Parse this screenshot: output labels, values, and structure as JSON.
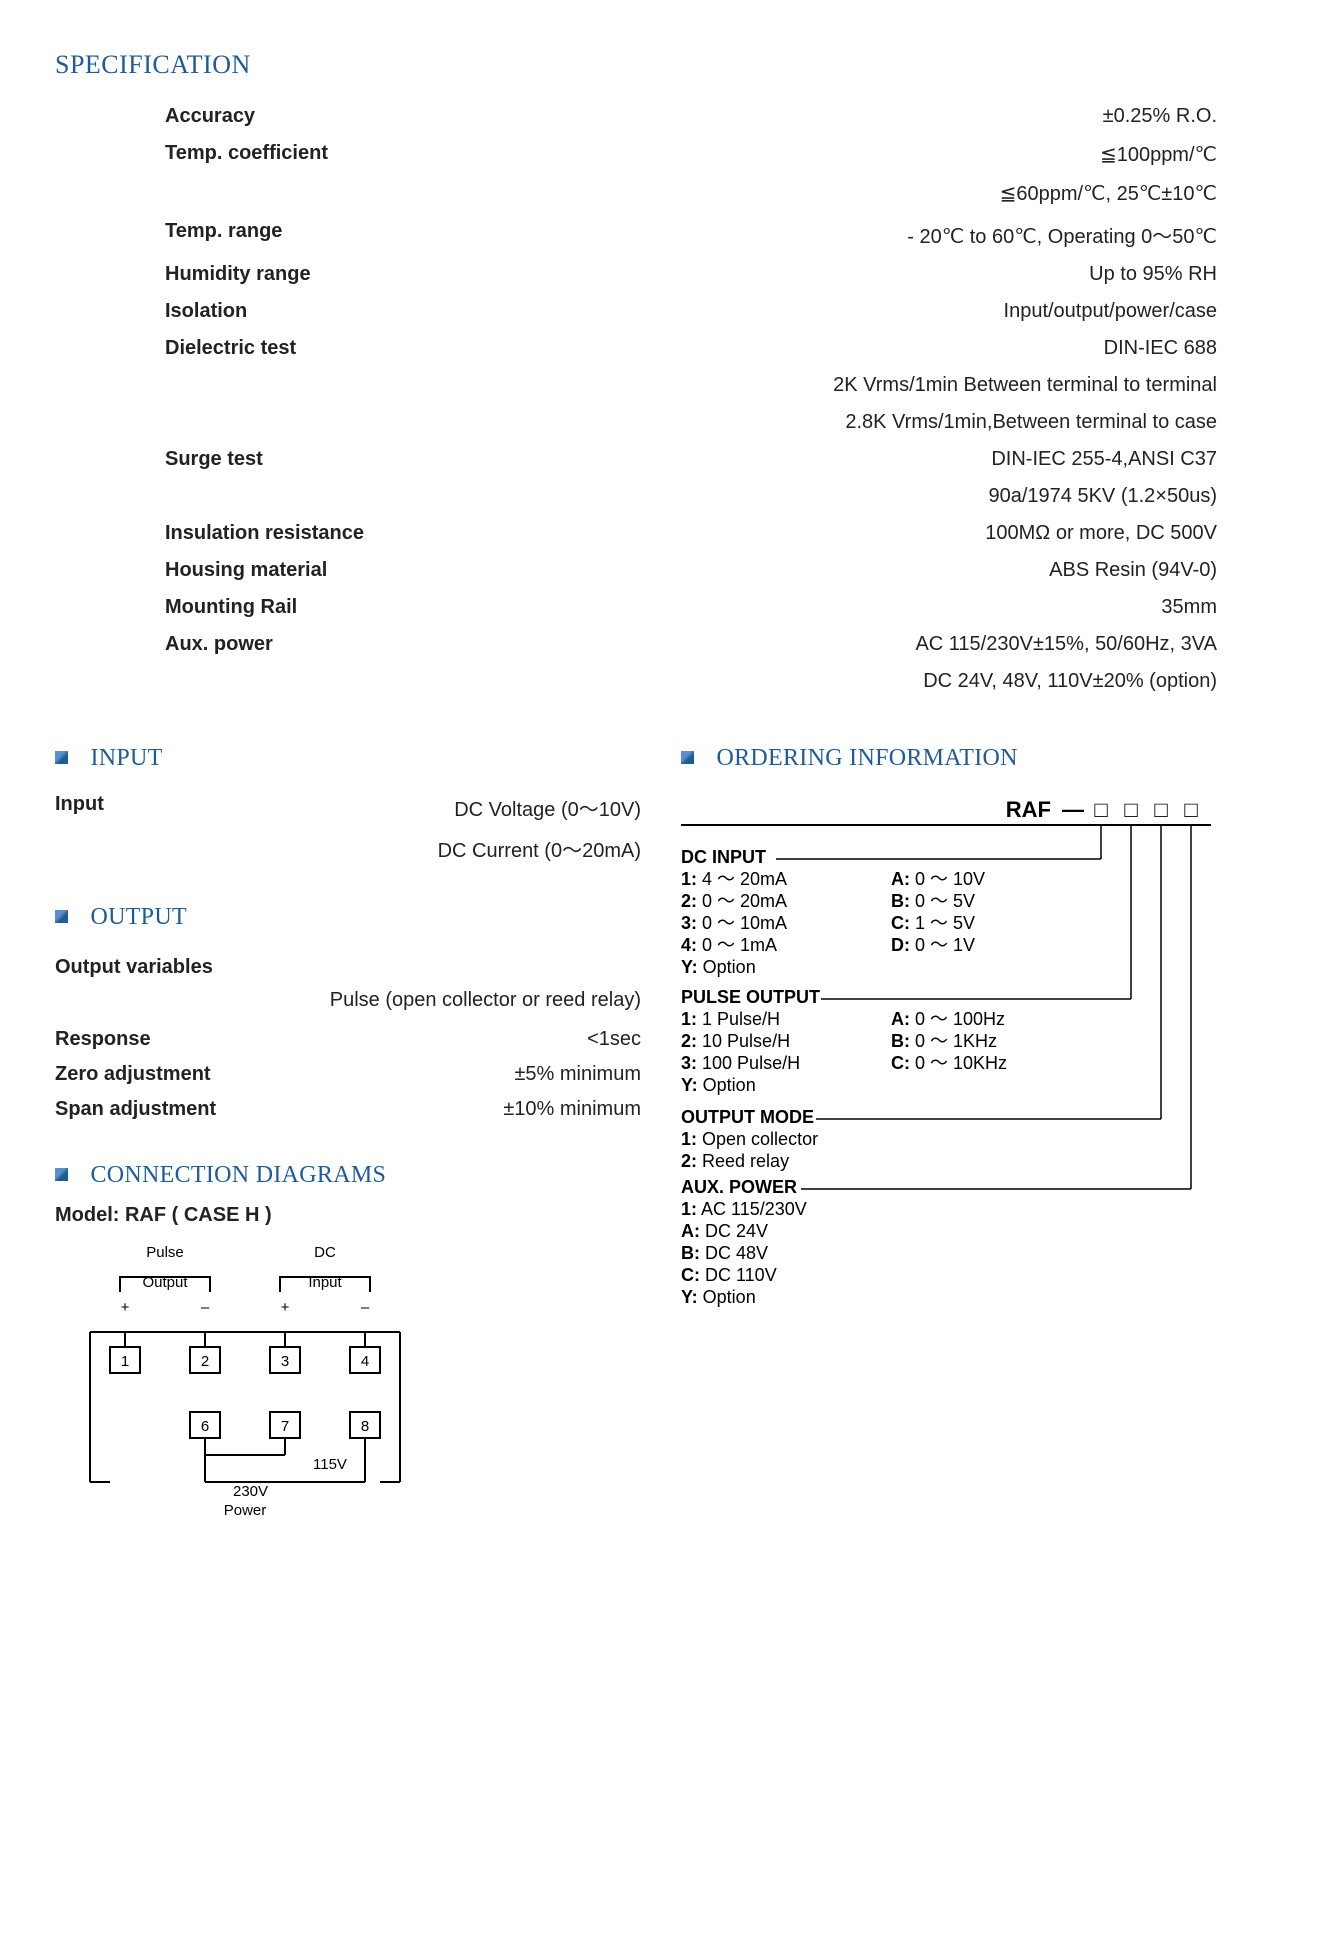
{
  "colors": {
    "heading": "#1d5b9a",
    "text": "#222222",
    "line": "#000000",
    "bg": "#ffffff"
  },
  "spec": {
    "title": "SPECIFICATION",
    "rows": [
      {
        "label": "Accuracy",
        "value": "±0.25% R.O."
      },
      {
        "label": "Temp. coefficient",
        "value": "≦100ppm/℃"
      },
      {
        "label": "",
        "value": "≦60ppm/℃, 25℃±10℃"
      },
      {
        "label": "Temp. range",
        "value": "- 20℃ to 60℃, Operating 0～50℃"
      },
      {
        "label": "Humidity range",
        "value": "Up to 95% RH"
      },
      {
        "label": "Isolation",
        "value": "Input/output/power/case"
      },
      {
        "label": "Dielectric test",
        "value": "DIN-IEC 688"
      },
      {
        "label": "",
        "value": "2K Vrms/1min Between terminal to terminal"
      },
      {
        "label": "",
        "value": "2.8K Vrms/1min,Between terminal to case"
      },
      {
        "label": "Surge test",
        "value": "DIN-IEC 255-4,ANSI C37"
      },
      {
        "label": "",
        "value": "90a/1974   5KV (1.2×50us)"
      },
      {
        "label": "Insulation resistance",
        "value": "100MΩ or more, DC 500V"
      },
      {
        "label": "Housing material",
        "value": "ABS Resin (94V-0)"
      },
      {
        "label": "Mounting Rail",
        "value": "35mm"
      },
      {
        "label": "Aux. power",
        "value": "AC 115/230V±15%, 50/60Hz, 3VA"
      },
      {
        "label": "",
        "value": "DC 24V, 48V, 110V±20% (option)"
      }
    ]
  },
  "input": {
    "title": "INPUT",
    "rows": [
      {
        "label": "Input",
        "value": "DC Voltage (0～10V)"
      },
      {
        "label": "",
        "value": "DC Current (0～20mA)"
      }
    ]
  },
  "output": {
    "title": "OUTPUT",
    "heading": "Output variables",
    "heading_value": "Pulse (open collector or reed relay)",
    "rows": [
      {
        "label": "Response",
        "value": "<1sec"
      },
      {
        "label": "Zero adjustment",
        "value": "±5% minimum"
      },
      {
        "label": "Span adjustment",
        "value": "±10% minimum"
      }
    ]
  },
  "conn": {
    "title": "CONNECTION DIAGRAMS",
    "model": "Model: RAF ( CASE H )",
    "labels": {
      "pulse": "Pulse",
      "output": "Output",
      "dc": "DC",
      "input": "Input",
      "v115": "115V",
      "v230": "230V",
      "power": "Power",
      "plus": "+",
      "minus": "–"
    },
    "terminals": [
      "1",
      "2",
      "3",
      "4",
      "6",
      "7",
      "8"
    ]
  },
  "order": {
    "title": "ORDERING INFORMATION",
    "code_prefix": "RAF",
    "dash": "—",
    "box": "□",
    "groups": [
      {
        "name": "DC INPUT",
        "left": [
          "1: 4 ～ 20mA",
          "2: 0 ～ 20mA",
          "3: 0 ～ 10mA",
          "4: 0 ～ 1mA",
          "Y: Option"
        ],
        "right": [
          "A: 0 ～ 10V",
          "B: 0 ～ 5V",
          "C: 1 ～ 5V",
          "D: 0 ～ 1V"
        ]
      },
      {
        "name": "PULSE OUTPUT",
        "left": [
          "1: 1 Pulse/H",
          "2: 10 Pulse/H",
          "3: 100 Pulse/H",
          "Y: Option"
        ],
        "right": [
          "A: 0 ～ 100Hz",
          "B: 0 ～ 1KHz",
          "C: 0 ～ 10KHz"
        ]
      },
      {
        "name": "OUTPUT MODE",
        "left": [
          "1: Open collector",
          "2: Reed relay"
        ],
        "right": []
      },
      {
        "name": "AUX. POWER",
        "left": [
          "1:  AC 115/230V",
          "A: DC 24V",
          "B: DC 48V",
          "C: DC 110V",
          "Y: Option"
        ],
        "right": []
      }
    ]
  }
}
